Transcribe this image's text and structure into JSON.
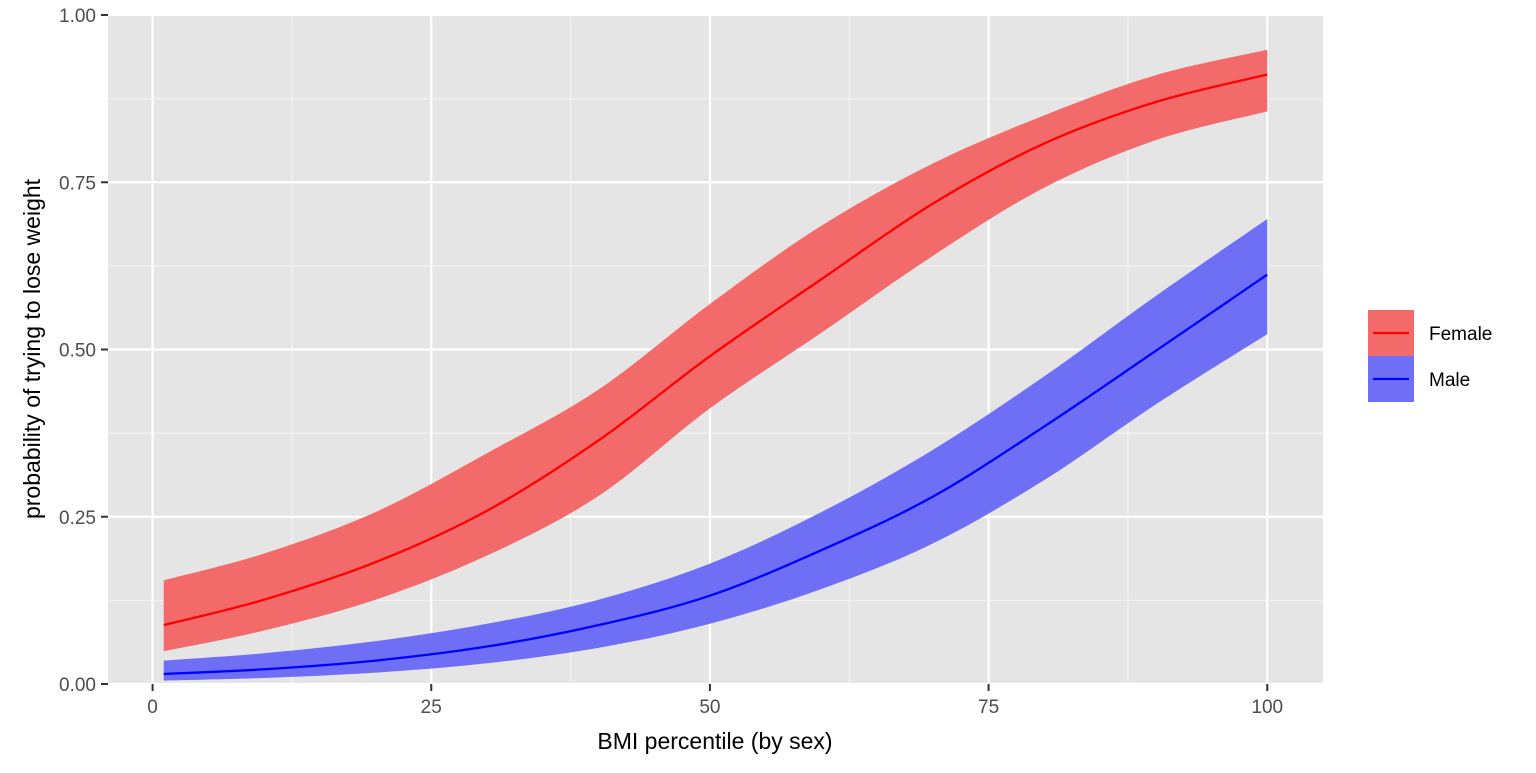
{
  "chart_data": {
    "type": "line",
    "title": "",
    "xlabel": "BMI percentile (by sex)",
    "ylabel": "probability of trying to lose weight",
    "xlim": [
      -4,
      105
    ],
    "ylim": [
      0,
      1
    ],
    "x_ticks": [
      0,
      25,
      50,
      75,
      100
    ],
    "x_tick_labels": [
      "0",
      "25",
      "50",
      "75",
      "100"
    ],
    "y_ticks": [
      0,
      0.25,
      0.5,
      0.75,
      1.0
    ],
    "y_tick_labels": [
      "0.00",
      "0.25",
      "0.50",
      "0.75",
      "1.00"
    ],
    "grid": true,
    "legend_position": "right",
    "series": [
      {
        "name": "Female",
        "color": "#ff0000",
        "band_color": "#f26a6a",
        "x": [
          1,
          10,
          20,
          30,
          40,
          50,
          60,
          70,
          80,
          90,
          100
        ],
        "y": [
          0.088,
          0.126,
          0.182,
          0.259,
          0.364,
          0.49,
          0.605,
          0.718,
          0.808,
          0.87,
          0.911
        ],
        "lower": [
          0.049,
          0.08,
          0.126,
          0.192,
          0.281,
          0.412,
          0.525,
          0.64,
          0.742,
          0.813,
          0.856
        ],
        "upper": [
          0.155,
          0.195,
          0.257,
          0.345,
          0.44,
          0.568,
          0.685,
          0.778,
          0.85,
          0.91,
          0.948
        ]
      },
      {
        "name": "Male",
        "color": "#0000ff",
        "band_color": "#6f6ff5",
        "x": [
          1,
          10,
          20,
          30,
          40,
          50,
          60,
          70,
          80,
          90,
          100
        ],
        "y": [
          0.015,
          0.022,
          0.035,
          0.056,
          0.088,
          0.132,
          0.2,
          0.28,
          0.385,
          0.498,
          0.612
        ],
        "lower": [
          0.005,
          0.009,
          0.017,
          0.031,
          0.054,
          0.09,
          0.142,
          0.21,
          0.305,
          0.418,
          0.523
        ],
        "upper": [
          0.035,
          0.046,
          0.064,
          0.09,
          0.126,
          0.18,
          0.257,
          0.35,
          0.46,
          0.58,
          0.695
        ]
      }
    ]
  }
}
